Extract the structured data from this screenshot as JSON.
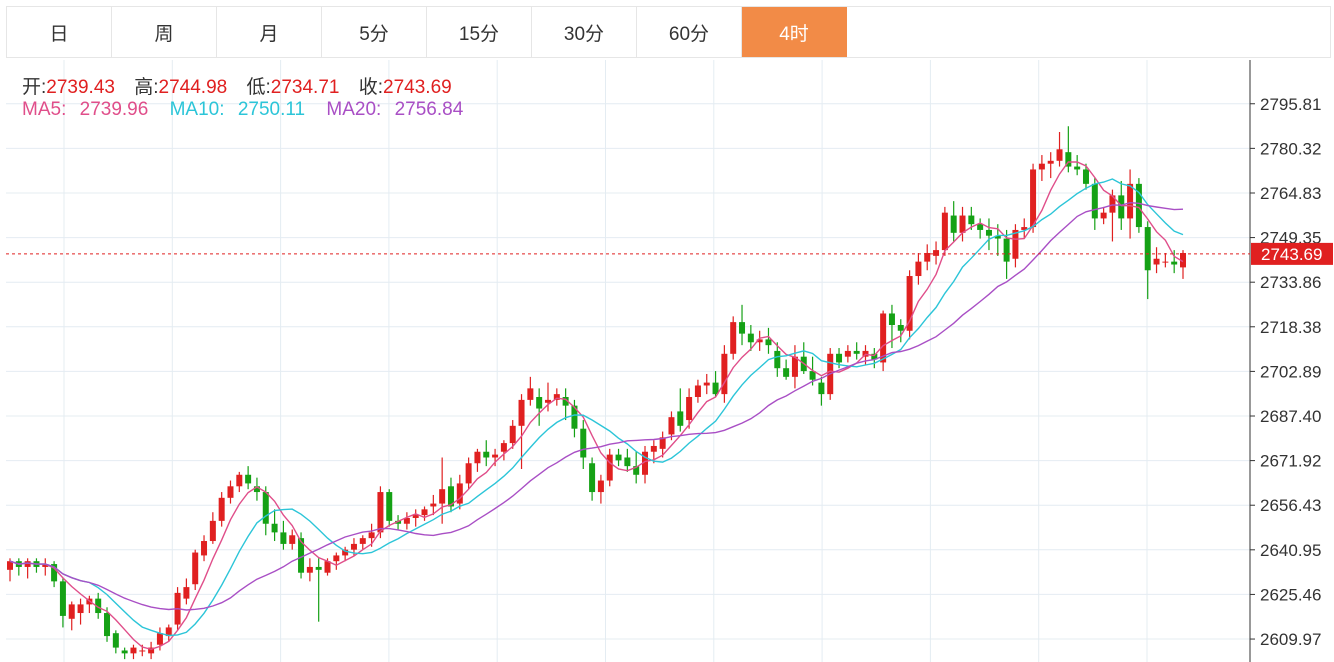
{
  "tabs": [
    {
      "label": "日"
    },
    {
      "label": "周"
    },
    {
      "label": "月"
    },
    {
      "label": "5分"
    },
    {
      "label": "15分"
    },
    {
      "label": "30分"
    },
    {
      "label": "60分"
    },
    {
      "label": "4时"
    }
  ],
  "active_tab": 7,
  "info": {
    "open_label": "开:",
    "open": "2739.43",
    "high_label": "高:",
    "high": "2744.98",
    "low_label": "低:",
    "low": "2734.71",
    "close_label": "收:",
    "close": "2743.69",
    "ma5_label": "MA5:",
    "ma5": "2739.96",
    "ma10_label": "MA10:",
    "ma10": "2750.11",
    "ma20_label": "MA20:",
    "ma20": "2756.84"
  },
  "colors": {
    "up": "#e02020",
    "down": "#15a115",
    "ma5": "#e04e8a",
    "ma10": "#2cc5d8",
    "ma20": "#a94fc5",
    "grid": "#e4ecf2",
    "active_tab": "#f28b47"
  },
  "chart_data": {
    "type": "candlestick",
    "ylim": [
      2602,
      2811
    ],
    "y_ticks": [
      "2795.81",
      "2780.32",
      "2764.83",
      "2749.35",
      "2733.86",
      "2718.38",
      "2702.89",
      "2687.40",
      "2671.92",
      "2656.43",
      "2640.95",
      "2625.46",
      "2609.97"
    ],
    "current_price": "2743.69",
    "candles": [
      [
        2634,
        2638,
        2630,
        2637
      ],
      [
        2637,
        2638,
        2632,
        2635
      ],
      [
        2635,
        2638,
        2631,
        2637
      ],
      [
        2637,
        2638,
        2633,
        2635
      ],
      [
        2635,
        2638,
        2632,
        2636
      ],
      [
        2636,
        2637,
        2628,
        2630
      ],
      [
        2630,
        2631,
        2614,
        2618
      ],
      [
        2617,
        2623,
        2613,
        2622
      ],
      [
        2619,
        2624,
        2615,
        2622
      ],
      [
        2622,
        2625,
        2619,
        2624
      ],
      [
        2624,
        2626,
        2617,
        2619
      ],
      [
        2619,
        2621,
        2609,
        2611
      ],
      [
        2612,
        2613,
        2605,
        2607
      ],
      [
        2606,
        2607,
        2603,
        2605
      ],
      [
        2605,
        2608,
        2603,
        2607
      ],
      [
        2606,
        2608,
        2604,
        2606
      ],
      [
        2605,
        2609,
        2603,
        2607
      ],
      [
        2608,
        2614,
        2606,
        2612
      ],
      [
        2611,
        2615,
        2609,
        2614
      ],
      [
        2615,
        2628,
        2613,
        2626
      ],
      [
        2624,
        2631,
        2622,
        2628
      ],
      [
        2629,
        2641,
        2627,
        2640
      ],
      [
        2639,
        2646,
        2637,
        2644
      ],
      [
        2644,
        2654,
        2643,
        2651
      ],
      [
        2651,
        2661,
        2649,
        2659
      ],
      [
        2659,
        2665,
        2657,
        2663
      ],
      [
        2663,
        2668,
        2661,
        2667
      ],
      [
        2667,
        2670,
        2662,
        2664
      ],
      [
        2663,
        2666,
        2658,
        2661
      ],
      [
        2661,
        2663,
        2646,
        2650
      ],
      [
        2650,
        2655,
        2644,
        2647
      ],
      [
        2647,
        2651,
        2641,
        2643
      ],
      [
        2643,
        2648,
        2641,
        2646
      ],
      [
        2645,
        2647,
        2631,
        2633
      ],
      [
        2633,
        2638,
        2630,
        2635
      ],
      [
        2635,
        2638,
        2616,
        2634
      ],
      [
        2633,
        2638,
        2632,
        2637
      ],
      [
        2637,
        2640,
        2634,
        2639
      ],
      [
        2639,
        2642,
        2637,
        2641
      ],
      [
        2641,
        2645,
        2639,
        2643
      ],
      [
        2643,
        2646,
        2641,
        2645
      ],
      [
        2645,
        2650,
        2642,
        2647
      ],
      [
        2647,
        2663,
        2645,
        2661
      ],
      [
        2661,
        2662,
        2649,
        2651
      ],
      [
        2651,
        2653,
        2648,
        2650
      ],
      [
        2650,
        2654,
        2648,
        2652
      ],
      [
        2652,
        2655,
        2649,
        2653
      ],
      [
        2653,
        2656,
        2651,
        2655
      ],
      [
        2656,
        2660,
        2653,
        2657
      ],
      [
        2657,
        2673,
        2650,
        2662
      ],
      [
        2663,
        2666,
        2654,
        2656
      ],
      [
        2657,
        2667,
        2655,
        2664
      ],
      [
        2664,
        2673,
        2662,
        2671
      ],
      [
        2671,
        2676,
        2668,
        2675
      ],
      [
        2675,
        2679,
        2670,
        2673
      ],
      [
        2673,
        2676,
        2670,
        2674
      ],
      [
        2675,
        2679,
        2672,
        2678
      ],
      [
        2678,
        2686,
        2676,
        2684
      ],
      [
        2684,
        2695,
        2669,
        2693
      ],
      [
        2693,
        2701,
        2691,
        2697
      ],
      [
        2694,
        2697,
        2684,
        2690
      ],
      [
        2692,
        2699,
        2689,
        2693
      ],
      [
        2693,
        2697,
        2691,
        2695
      ],
      [
        2694,
        2697,
        2686,
        2691
      ],
      [
        2691,
        2693,
        2680,
        2683
      ],
      [
        2683,
        2686,
        2669,
        2673
      ],
      [
        2671,
        2673,
        2658,
        2661
      ],
      [
        2661,
        2667,
        2657,
        2665
      ],
      [
        2665,
        2676,
        2663,
        2674
      ],
      [
        2674,
        2676,
        2670,
        2672
      ],
      [
        2673,
        2676,
        2668,
        2670
      ],
      [
        2670,
        2675,
        2664,
        2667
      ],
      [
        2667,
        2677,
        2664,
        2675
      ],
      [
        2675,
        2679,
        2671,
        2677
      ],
      [
        2676,
        2682,
        2673,
        2680
      ],
      [
        2681,
        2689,
        2679,
        2687
      ],
      [
        2689,
        2697,
        2682,
        2684
      ],
      [
        2686,
        2697,
        2683,
        2694
      ],
      [
        2694,
        2700,
        2692,
        2698
      ],
      [
        2698,
        2702,
        2695,
        2699
      ],
      [
        2699,
        2703,
        2694,
        2695
      ],
      [
        2695,
        2712,
        2692,
        2709
      ],
      [
        2709,
        2722,
        2707,
        2720
      ],
      [
        2720,
        2726,
        2712,
        2716
      ],
      [
        2716,
        2719,
        2710,
        2713
      ],
      [
        2713,
        2717,
        2710,
        2714
      ],
      [
        2714,
        2718,
        2709,
        2712
      ],
      [
        2710,
        2713,
        2701,
        2704
      ],
      [
        2704,
        2707,
        2700,
        2701
      ],
      [
        2701,
        2712,
        2697,
        2708
      ],
      [
        2708,
        2713,
        2702,
        2703
      ],
      [
        2703,
        2708,
        2698,
        2700
      ],
      [
        2699,
        2701,
        2691,
        2695
      ],
      [
        2695,
        2711,
        2693,
        2709
      ],
      [
        2709,
        2711,
        2704,
        2706
      ],
      [
        2708,
        2712,
        2706,
        2710
      ],
      [
        2710,
        2713,
        2707,
        2709
      ],
      [
        2708,
        2712,
        2705,
        2710
      ],
      [
        2709,
        2711,
        2704,
        2707
      ],
      [
        2706,
        2724,
        2703,
        2723
      ],
      [
        2723,
        2726,
        2711,
        2719
      ],
      [
        2719,
        2721,
        2713,
        2717
      ],
      [
        2717,
        2738,
        2714,
        2736
      ],
      [
        2736,
        2744,
        2733,
        2741
      ],
      [
        2741,
        2747,
        2738,
        2744
      ],
      [
        2743,
        2748,
        2740,
        2745
      ],
      [
        2745,
        2760,
        2743,
        2758
      ],
      [
        2757,
        2762,
        2748,
        2751
      ],
      [
        2751,
        2760,
        2748,
        2757
      ],
      [
        2757,
        2760,
        2752,
        2754
      ],
      [
        2754,
        2756,
        2749,
        2752
      ],
      [
        2752,
        2756,
        2745,
        2750
      ],
      [
        2750,
        2754,
        2743,
        2749
      ],
      [
        2749,
        2752,
        2735,
        2741
      ],
      [
        2742,
        2754,
        2739,
        2752
      ],
      [
        2752,
        2756,
        2749,
        2753
      ],
      [
        2753,
        2775,
        2751,
        2773
      ],
      [
        2773,
        2778,
        2769,
        2775
      ],
      [
        2775,
        2779,
        2770,
        2776
      ],
      [
        2776,
        2786,
        2774,
        2780
      ],
      [
        2779,
        2788,
        2772,
        2774
      ],
      [
        2774,
        2778,
        2771,
        2773
      ],
      [
        2773,
        2775,
        2766,
        2768
      ],
      [
        2768,
        2770,
        2752,
        2756
      ],
      [
        2756,
        2760,
        2754,
        2758
      ],
      [
        2758,
        2766,
        2748,
        2764
      ],
      [
        2764,
        2769,
        2752,
        2756
      ],
      [
        2756,
        2773,
        2749,
        2768
      ],
      [
        2768,
        2770,
        2751,
        2753
      ],
      [
        2753,
        2755,
        2728,
        2738
      ],
      [
        2740,
        2746,
        2737,
        2742
      ],
      [
        2741,
        2744,
        2739,
        2741
      ],
      [
        2741,
        2745,
        2737,
        2740
      ],
      [
        2739,
        2745,
        2735,
        2744
      ]
    ]
  }
}
